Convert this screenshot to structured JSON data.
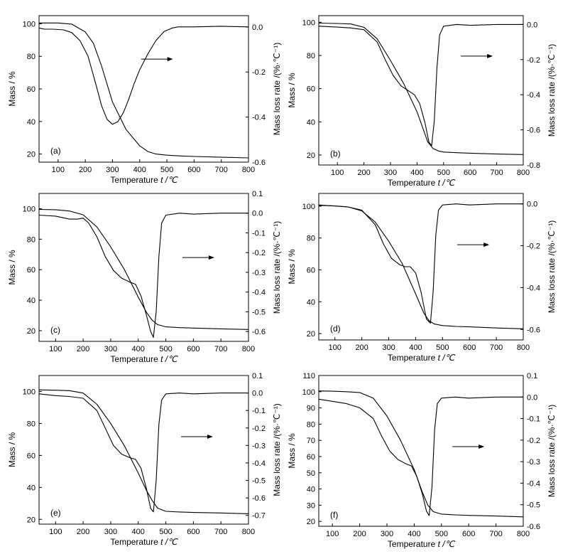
{
  "figure": {
    "x_title": "Temperature",
    "x_title_symbol": "t /℃",
    "y_left_title": "Mass / %",
    "y_right_title": "Mass loss rate  /(%·℃⁻¹)"
  },
  "chart_data": [
    {
      "type": "line",
      "panel_label": "(a)",
      "xlim": [
        30,
        800
      ],
      "x_ticks": [
        100,
        200,
        300,
        400,
        500,
        600,
        700,
        800
      ],
      "ylim_left": [
        15,
        105
      ],
      "y_ticks_left": [
        20,
        40,
        60,
        80,
        100
      ],
      "ylim_right": [
        -0.6,
        0.05
      ],
      "y_ticks_right": [
        0.0,
        -0.2,
        -0.4,
        -0.6
      ],
      "y_ticks_right_labels": [
        "0.0",
        "-0.2",
        "-0.4",
        "-0.6"
      ],
      "arrow_at": {
        "x": 405,
        "y": -0.143
      },
      "series": [
        {
          "axis": "left",
          "x": [
            30,
            100,
            150,
            200,
            230,
            260,
            300,
            350,
            400,
            430,
            460,
            500,
            550,
            600,
            700,
            800
          ],
          "y": [
            100.5,
            100.5,
            99.8,
            95,
            88,
            74,
            52,
            35,
            25,
            21.5,
            20,
            19.3,
            18.8,
            18.5,
            18,
            17.6
          ]
        },
        {
          "axis": "right",
          "x": [
            30,
            50,
            80,
            120,
            150,
            180,
            210,
            240,
            260,
            280,
            300,
            320,
            340,
            360,
            380,
            400,
            430,
            460,
            490,
            520,
            540,
            600,
            700,
            800
          ],
          "y": [
            -0.005,
            -0.01,
            -0.01,
            -0.013,
            -0.025,
            -0.06,
            -0.13,
            -0.26,
            -0.35,
            -0.41,
            -0.432,
            -0.42,
            -0.38,
            -0.32,
            -0.25,
            -0.19,
            -0.12,
            -0.06,
            -0.02,
            -0.005,
            0.0,
            0.0,
            0.003,
            0.0
          ]
        }
      ]
    },
    {
      "type": "line",
      "panel_label": "(b)",
      "xlim": [
        30,
        800
      ],
      "x_ticks": [
        100,
        200,
        300,
        400,
        500,
        600,
        700,
        800
      ],
      "ylim_left": [
        14,
        104
      ],
      "y_ticks_left": [
        20,
        40,
        60,
        80,
        100
      ],
      "ylim_right": [
        -0.8,
        0.05
      ],
      "y_ticks_right": [
        0.0,
        -0.2,
        -0.4,
        -0.6,
        -0.8
      ],
      "y_ticks_right_labels": [
        "0.0",
        "-0.2",
        "-0.4",
        "-0.6",
        "-0.8"
      ],
      "arrow_at": {
        "x": 565,
        "y": -0.18
      },
      "series": [
        {
          "axis": "left",
          "x": [
            30,
            100,
            150,
            200,
            250,
            300,
            350,
            400,
            440,
            460,
            480,
            500,
            550,
            600,
            700,
            800
          ],
          "y": [
            99.5,
            99.3,
            99,
            97,
            90,
            77,
            63,
            46,
            28,
            24,
            22.5,
            21.8,
            21.4,
            21.1,
            20.6,
            20.3
          ]
        },
        {
          "axis": "right",
          "x": [
            30,
            100,
            150,
            200,
            250,
            280,
            310,
            340,
            370,
            390,
            410,
            430,
            445,
            455,
            465,
            475,
            485,
            500,
            550,
            600,
            700,
            800
          ],
          "y": [
            -0.01,
            -0.015,
            -0.02,
            -0.03,
            -0.1,
            -0.2,
            -0.29,
            -0.35,
            -0.38,
            -0.4,
            -0.45,
            -0.56,
            -0.67,
            -0.69,
            -0.55,
            -0.25,
            -0.06,
            -0.01,
            0.0,
            -0.005,
            0.0,
            0.0
          ]
        }
      ]
    },
    {
      "type": "line",
      "panel_label": "(c)",
      "xlim": [
        40,
        800
      ],
      "x_ticks": [
        100,
        200,
        300,
        400,
        500,
        600,
        700,
        800
      ],
      "ylim_left": [
        13,
        110
      ],
      "y_ticks_left": [
        20,
        40,
        60,
        80,
        100
      ],
      "ylim_right": [
        -0.65,
        0.1
      ],
      "y_ticks_right": [
        0.1,
        0.0,
        -0.1,
        -0.2,
        -0.3,
        -0.4,
        -0.5,
        -0.6
      ],
      "y_ticks_right_labels": [
        "0.1",
        "0.0",
        "-0.1",
        "-0.2",
        "-0.3",
        "-0.4",
        "-0.5",
        "-0.6"
      ],
      "arrow_at": {
        "x": 560,
        "y": -0.225
      },
      "series": [
        {
          "axis": "left",
          "x": [
            40,
            100,
            150,
            200,
            250,
            300,
            350,
            400,
            430,
            450,
            470,
            500,
            550,
            600,
            700,
            800
          ],
          "y": [
            99.5,
            99.3,
            98.5,
            96,
            88,
            75,
            60,
            42,
            32,
            27,
            24,
            22.5,
            22,
            21.7,
            21.2,
            20.8
          ]
        },
        {
          "axis": "right",
          "x": [
            40,
            100,
            150,
            180,
            200,
            220,
            250,
            280,
            310,
            340,
            370,
            390,
            410,
            430,
            445,
            455,
            465,
            475,
            485,
            500,
            550,
            600,
            700,
            800
          ],
          "y": [
            -0.01,
            -0.015,
            -0.03,
            -0.03,
            -0.025,
            -0.05,
            -0.12,
            -0.22,
            -0.29,
            -0.33,
            -0.35,
            -0.36,
            -0.42,
            -0.52,
            -0.6,
            -0.63,
            -0.5,
            -0.22,
            -0.05,
            -0.01,
            0.0,
            -0.005,
            0.0,
            0.0
          ]
        }
      ]
    },
    {
      "type": "line",
      "panel_label": "(d)",
      "xlim": [
        40,
        800
      ],
      "x_ticks": [
        100,
        200,
        300,
        400,
        500,
        600,
        700,
        800
      ],
      "ylim_left": [
        16,
        108
      ],
      "y_ticks_left": [
        20,
        40,
        60,
        80,
        100
      ],
      "ylim_right": [
        -0.65,
        0.05
      ],
      "y_ticks_right": [
        0.0,
        -0.2,
        -0.4,
        -0.6
      ],
      "y_ticks_right_labels": [
        "0.0",
        "-0.2",
        "-0.4",
        "-0.6"
      ],
      "arrow_at": {
        "x": 555,
        "y": -0.195
      },
      "series": [
        {
          "axis": "left",
          "x": [
            40,
            100,
            150,
            200,
            250,
            300,
            350,
            400,
            430,
            450,
            470,
            500,
            550,
            600,
            700,
            800
          ],
          "y": [
            100.5,
            100.2,
            99.5,
            97,
            90,
            78,
            64,
            45,
            33,
            28,
            26,
            25,
            24.5,
            24.2,
            23.5,
            23
          ]
        },
        {
          "axis": "right",
          "x": [
            40,
            100,
            150,
            200,
            250,
            280,
            310,
            340,
            360,
            380,
            400,
            420,
            440,
            455,
            465,
            475,
            485,
            500,
            550,
            600,
            700,
            800
          ],
          "y": [
            -0.005,
            -0.01,
            -0.015,
            -0.03,
            -0.1,
            -0.19,
            -0.26,
            -0.29,
            -0.3,
            -0.3,
            -0.33,
            -0.42,
            -0.55,
            -0.57,
            -0.42,
            -0.15,
            -0.03,
            -0.005,
            0.0,
            -0.005,
            0.0,
            0.0
          ]
        }
      ]
    },
    {
      "type": "line",
      "panel_label": "(e)",
      "xlim": [
        40,
        800
      ],
      "x_ticks": [
        100,
        200,
        300,
        400,
        500,
        600,
        700,
        800
      ],
      "ylim_left": [
        17,
        110
      ],
      "y_ticks_left": [
        20,
        40,
        60,
        80,
        100
      ],
      "ylim_right": [
        -0.75,
        0.1
      ],
      "y_ticks_right": [
        0.1,
        0.0,
        -0.1,
        -0.2,
        -0.3,
        -0.4,
        -0.5,
        -0.6,
        -0.7
      ],
      "y_ticks_right_labels": [
        "0.1",
        "0.0",
        "-0.1",
        "-0.2",
        "-0.3",
        "-0.4",
        "-0.5",
        "-0.6",
        "-0.7"
      ],
      "arrow_at": {
        "x": 555,
        "y": -0.25
      },
      "series": [
        {
          "axis": "left",
          "x": [
            40,
            100,
            150,
            200,
            250,
            300,
            350,
            400,
            430,
            450,
            470,
            500,
            550,
            600,
            700,
            800
          ],
          "y": [
            101,
            100.8,
            100.5,
            99,
            92,
            80,
            66,
            49,
            38,
            32,
            27,
            25,
            24.6,
            24.3,
            24,
            23.5
          ]
        },
        {
          "axis": "right",
          "x": [
            40,
            100,
            150,
            200,
            250,
            280,
            310,
            340,
            370,
            390,
            410,
            430,
            445,
            455,
            465,
            475,
            485,
            500,
            550,
            600,
            700,
            800
          ],
          "y": [
            -0.005,
            -0.015,
            -0.02,
            -0.03,
            -0.1,
            -0.2,
            -0.3,
            -0.35,
            -0.37,
            -0.38,
            -0.43,
            -0.55,
            -0.66,
            -0.68,
            -0.5,
            -0.18,
            -0.04,
            -0.005,
            0.0,
            -0.005,
            0.0,
            0.0
          ]
        }
      ]
    },
    {
      "type": "line",
      "panel_label": "(f)",
      "xlim": [
        50,
        800
      ],
      "x_ticks": [
        100,
        200,
        300,
        400,
        500,
        600,
        700,
        800
      ],
      "ylim_left": [
        17,
        110
      ],
      "y_ticks_left": [
        20,
        30,
        40,
        50,
        60,
        70,
        80,
        90,
        100,
        110
      ],
      "ylim_right": [
        -0.6,
        0.1
      ],
      "y_ticks_right": [
        0.1,
        0.0,
        -0.1,
        -0.2,
        -0.3,
        -0.4,
        -0.5,
        -0.6
      ],
      "y_ticks_right_labels": [
        "0.1",
        "0.0",
        "-0.1",
        "-0.2",
        "-0.3",
        "-0.4",
        "-0.5",
        "-0.6"
      ],
      "arrow_at": {
        "x": 540,
        "y": -0.23
      },
      "series": [
        {
          "axis": "left",
          "x": [
            50,
            100,
            150,
            200,
            250,
            300,
            350,
            400,
            430,
            450,
            470,
            500,
            550,
            600,
            700,
            800
          ],
          "y": [
            100.5,
            100.3,
            100,
            99.5,
            96,
            85,
            70,
            52,
            38,
            30,
            26,
            24.5,
            24,
            23.7,
            23.3,
            22.8
          ]
        },
        {
          "axis": "right",
          "x": [
            50,
            100,
            150,
            200,
            250,
            280,
            310,
            340,
            370,
            390,
            410,
            430,
            445,
            455,
            465,
            475,
            485,
            500,
            550,
            600,
            700,
            800
          ],
          "y": [
            -0.01,
            -0.02,
            -0.03,
            -0.05,
            -0.1,
            -0.18,
            -0.25,
            -0.29,
            -0.31,
            -0.32,
            -0.37,
            -0.45,
            -0.53,
            -0.55,
            -0.42,
            -0.15,
            -0.03,
            -0.005,
            0.0,
            -0.005,
            0.0,
            0.0
          ]
        }
      ]
    }
  ]
}
